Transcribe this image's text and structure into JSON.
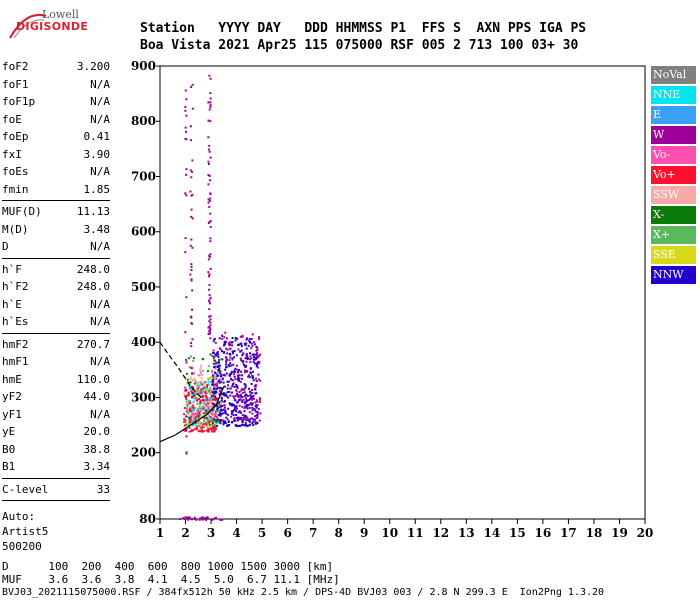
{
  "logo": {
    "line1": "Lowell",
    "line2": "DIGISONDE"
  },
  "header": {
    "row1": "Station   YYYY DAY   DDD HHMMSS P1  FFS S  AXN PPS IGA PS",
    "row2": "Boa Vista 2021 Apr25 115 075000 RSF 005 2 713 100 03+ 30"
  },
  "params": {
    "group1": [
      {
        "name": "foF2",
        "value": "3.200"
      },
      {
        "name": "foF1",
        "value": "N/A"
      },
      {
        "name": "foF1p",
        "value": "N/A"
      },
      {
        "name": "foE",
        "value": "N/A"
      },
      {
        "name": "foEp",
        "value": "0.41"
      },
      {
        "name": "fxI",
        "value": "3.90"
      },
      {
        "name": "foEs",
        "value": "N/A"
      },
      {
        "name": "fmin",
        "value": "1.85"
      }
    ],
    "group2": [
      {
        "name": "MUF(D)",
        "value": "11.13"
      },
      {
        "name": "M(D)",
        "value": "3.48"
      },
      {
        "name": "D",
        "value": "N/A"
      }
    ],
    "group3": [
      {
        "name": "h`F",
        "value": "248.0"
      },
      {
        "name": "h`F2",
        "value": "248.0"
      },
      {
        "name": "h`E",
        "value": "N/A"
      },
      {
        "name": "h`Es",
        "value": "N/A"
      }
    ],
    "group4": [
      {
        "name": "hmF2",
        "value": "270.7"
      },
      {
        "name": "hmF1",
        "value": "N/A"
      },
      {
        "name": "hmE",
        "value": "110.0"
      },
      {
        "name": "yF2",
        "value": "44.0"
      },
      {
        "name": "yF1",
        "value": "N/A"
      },
      {
        "name": "yE",
        "value": "20.0"
      },
      {
        "name": "B0",
        "value": "38.8"
      },
      {
        "name": "B1",
        "value": "3.34"
      }
    ],
    "group5": [
      {
        "name": "C-level",
        "value": "33"
      }
    ],
    "auto": [
      "Auto:",
      "Artist5",
      "500200"
    ]
  },
  "legend": [
    {
      "label": "NoVal",
      "color": "#808080"
    },
    {
      "label": "NNE",
      "color": "#00e5ee"
    },
    {
      "label": "E",
      "color": "#3aa0f5"
    },
    {
      "label": "W",
      "color": "#a0009a"
    },
    {
      "label": "Vo-",
      "color": "#ff4fb0"
    },
    {
      "label": "Vo+",
      "color": "#ff1030"
    },
    {
      "label": "SSW",
      "color": "#f7a8a8"
    },
    {
      "label": "X-",
      "color": "#0a7a0a"
    },
    {
      "label": "X+",
      "color": "#5cb85c"
    },
    {
      "label": "SSE",
      "color": "#d8d81a"
    },
    {
      "label": "NNW",
      "color": "#2200d0"
    }
  ],
  "footer": {
    "row1": "D      100  200  400  600  800 1000 1500 3000 [km]",
    "row2": "MUF    3.6  3.6  3.8  4.1  4.5  5.0  6.7 11.1 [MHz]",
    "row3": "BVJ03_2021115075000.RSF / 384fx512h 50 kHz 2.5 km / DPS-4D BVJ03 003 / 2.8 N 299.3 E  Ion2Png 1.3.20"
  },
  "chart_data": {
    "type": "scatter",
    "xlim": [
      1,
      20
    ],
    "ylim": [
      80,
      900
    ],
    "x_ticks": [
      1,
      2,
      3,
      4,
      5,
      6,
      7,
      8,
      9,
      10,
      11,
      12,
      13,
      14,
      15,
      16,
      17,
      18,
      19,
      20
    ],
    "y_ticks": [
      80,
      200,
      300,
      400,
      500,
      600,
      700,
      800,
      900
    ],
    "grid": false,
    "legend_position": "right",
    "clusters": [
      {
        "series": "NNE",
        "x_range": [
          2.0,
          3.2
        ],
        "y_range": [
          250,
          330
        ],
        "n": 140
      },
      {
        "series": "E",
        "x_range": [
          2.1,
          3.0
        ],
        "y_range": [
          255,
          320
        ],
        "n": 70
      },
      {
        "series": "Vo+",
        "x_range": [
          1.9,
          3.2
        ],
        "y_range": [
          240,
          330
        ],
        "n": 190
      },
      {
        "series": "Vo-",
        "x_range": [
          2.2,
          3.4
        ],
        "y_range": [
          270,
          360
        ],
        "n": 50
      },
      {
        "series": "W",
        "x_range": [
          3.0,
          4.9
        ],
        "y_range": [
          260,
          420
        ],
        "n": 300
      },
      {
        "series": "NNW",
        "x_range": [
          3.0,
          4.8
        ],
        "y_range": [
          250,
          410
        ],
        "n": 320
      },
      {
        "series": "X-",
        "x_range": [
          2.0,
          3.4
        ],
        "y_range": [
          250,
          380
        ],
        "n": 40
      },
      {
        "series": "X+",
        "x_range": [
          2.0,
          3.4
        ],
        "y_range": [
          250,
          380
        ],
        "n": 40
      },
      {
        "series": "SSE",
        "x_range": [
          1.9,
          3.0
        ],
        "y_range": [
          250,
          340
        ],
        "n": 40
      },
      {
        "series": "SSW",
        "x_range": [
          1.9,
          3.2
        ],
        "y_range": [
          250,
          360
        ],
        "n": 40
      },
      {
        "series": "W",
        "x_range": [
          2.85,
          2.95
        ],
        "y_range": [
          400,
          900
        ],
        "n": 70
      },
      {
        "series": "W",
        "x_range": [
          2.15,
          2.25
        ],
        "y_range": [
          300,
          900
        ],
        "n": 40
      },
      {
        "series": "W",
        "x_range": [
          1.95,
          2.0
        ],
        "y_range": [
          200,
          900
        ],
        "n": 30
      },
      {
        "series": "W",
        "x_range": [
          1.6,
          3.4
        ],
        "y_range": [
          80,
          85
        ],
        "n": 40
      }
    ],
    "profile_curves": [
      {
        "name": "lower",
        "points": [
          [
            1.0,
            220
          ],
          [
            1.6,
            232
          ],
          [
            2.2,
            250
          ],
          [
            2.8,
            268
          ],
          [
            3.2,
            286
          ],
          [
            3.5,
            320
          ]
        ]
      },
      {
        "name": "upper",
        "points": [
          [
            1.0,
            400
          ],
          [
            1.3,
            380
          ],
          [
            1.7,
            355
          ],
          [
            2.2,
            320
          ],
          [
            2.7,
            295
          ]
        ]
      }
    ]
  }
}
